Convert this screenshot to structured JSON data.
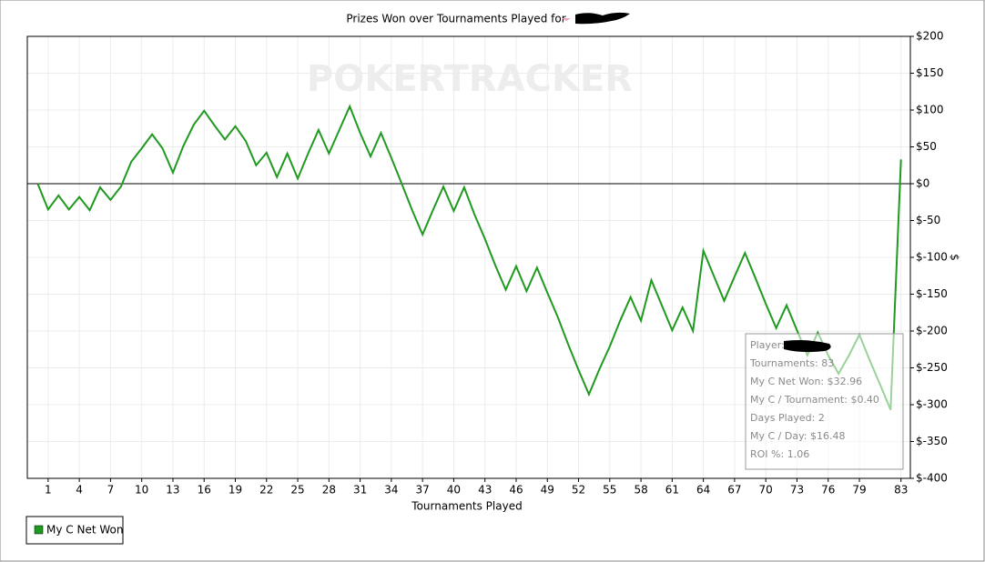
{
  "chart_data": {
    "type": "line",
    "title": "Prizes Won over Tournaments Played for",
    "watermark": "POKERTRACKER",
    "x_label": "Tournaments Played",
    "y_label": "$",
    "x": [
      0,
      1,
      2,
      3,
      4,
      5,
      6,
      7,
      8,
      9,
      10,
      11,
      12,
      13,
      14,
      15,
      16,
      17,
      18,
      19,
      20,
      21,
      22,
      23,
      24,
      25,
      26,
      27,
      28,
      29,
      30,
      31,
      32,
      33,
      34,
      35,
      36,
      37,
      38,
      39,
      40,
      41,
      42,
      43,
      44,
      45,
      46,
      47,
      48,
      49,
      50,
      51,
      52,
      53,
      54,
      55,
      56,
      57,
      58,
      59,
      60,
      61,
      62,
      63,
      64,
      65,
      66,
      67,
      68,
      69,
      70,
      71,
      72,
      73,
      74,
      75,
      76,
      77,
      78,
      79,
      80,
      81,
      82,
      83
    ],
    "series": [
      {
        "name": "My C Net Won",
        "color": "#1f9a1f",
        "values": [
          0,
          -35,
          -16,
          -35,
          -18,
          -36,
          -5,
          -22,
          -4,
          30,
          48,
          67,
          48,
          15,
          51,
          80,
          99,
          79,
          60,
          78,
          58,
          25,
          42,
          9,
          41,
          7,
          41,
          73,
          41,
          73,
          105,
          69,
          37,
          69,
          35,
          0,
          -36,
          -69,
          -36,
          -4,
          -37,
          -5,
          -42,
          -75,
          -111,
          -144,
          -112,
          -146,
          -114,
          -148,
          -181,
          -218,
          -253,
          -286,
          -252,
          -221,
          -186,
          -154,
          -186,
          -131,
          -165,
          -199,
          -168,
          -200,
          -91,
          -125,
          -159,
          -126,
          -94,
          -128,
          -163,
          -196,
          -165,
          -199,
          -233,
          -202,
          -233,
          -258,
          -233,
          -205,
          -240,
          -273,
          -307,
          32.96
        ]
      }
    ],
    "xlim": [
      -1,
      83.9
    ],
    "xticks": [
      1,
      4,
      7,
      10,
      13,
      16,
      19,
      22,
      25,
      28,
      31,
      34,
      37,
      40,
      43,
      46,
      49,
      52,
      55,
      58,
      61,
      64,
      67,
      70,
      73,
      76,
      79,
      83
    ],
    "ylim": [
      -400,
      200
    ],
    "yticks": [
      {
        "value": 200,
        "label": "$200"
      },
      {
        "value": 150,
        "label": "$150"
      },
      {
        "value": 100,
        "label": "$100"
      },
      {
        "value": 50,
        "label": "$50"
      },
      {
        "value": 0,
        "label": "$0"
      },
      {
        "value": -50,
        "label": "$-50"
      },
      {
        "value": -100,
        "label": "$-100"
      },
      {
        "value": -150,
        "label": "$-150"
      },
      {
        "value": -200,
        "label": "$-200"
      },
      {
        "value": -250,
        "label": "$-250"
      },
      {
        "value": -300,
        "label": "$-300"
      },
      {
        "value": -350,
        "label": "$-350"
      },
      {
        "value": -400,
        "label": "$-400"
      }
    ],
    "grid": true,
    "zero_line": true,
    "legend": "bottom-left",
    "tooltip": [
      "Player:",
      "Tournaments: 83",
      "My C Net Won: $32.96",
      "My C / Tournament: $0.40",
      "Days Played: 2",
      "My C / Day: $16.48",
      "ROI %: 1.06"
    ]
  }
}
